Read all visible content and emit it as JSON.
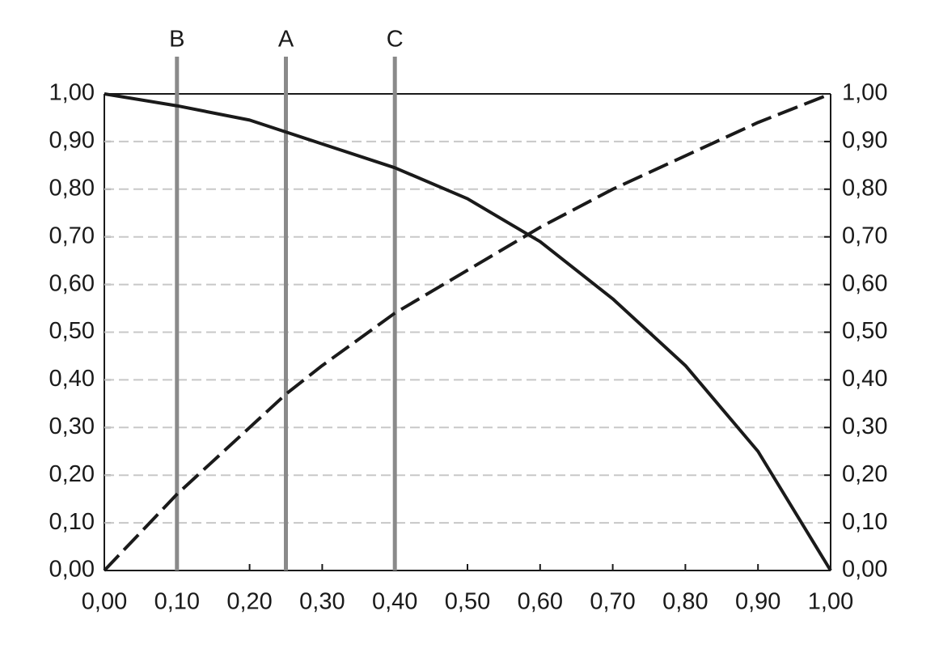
{
  "chart_data": {
    "type": "line",
    "x": [
      0,
      0.1,
      0.2,
      0.25,
      0.3,
      0.4,
      0.5,
      0.6,
      0.7,
      0.8,
      0.9,
      1.0
    ],
    "series": [
      {
        "color": "#1a1a1a",
        "dash": false,
        "values": [
          1.0,
          0.975,
          0.945,
          0.92,
          0.895,
          0.845,
          0.78,
          0.69,
          0.57,
          0.43,
          0.25,
          0.0
        ]
      },
      {
        "color": "#1a1a1a",
        "dash": true,
        "values": [
          0.0,
          0.16,
          0.3,
          0.37,
          0.43,
          0.54,
          0.63,
          0.72,
          0.8,
          0.87,
          0.94,
          1.0
        ]
      }
    ],
    "markers": [
      {
        "label": "B",
        "x": 0.1
      },
      {
        "label": "A",
        "x": 0.25
      },
      {
        "label": "C",
        "x": 0.4
      }
    ],
    "xlim": [
      0,
      1
    ],
    "ylim": [
      0,
      1
    ],
    "y2lim": [
      0,
      1
    ],
    "xticks": [
      {
        "value": 0,
        "label": "0,00"
      },
      {
        "value": 0.1,
        "label": "0,10"
      },
      {
        "value": 0.2,
        "label": "0,20"
      },
      {
        "value": 0.3,
        "label": "0,30"
      },
      {
        "value": 0.4,
        "label": "0,40"
      },
      {
        "value": 0.5,
        "label": "0,50"
      },
      {
        "value": 0.6,
        "label": "0,60"
      },
      {
        "value": 0.7,
        "label": "0,70"
      },
      {
        "value": 0.8,
        "label": "0,80"
      },
      {
        "value": 0.9,
        "label": "0,90"
      },
      {
        "value": 1,
        "label": "1,00"
      }
    ],
    "yticks": [
      {
        "value": 0,
        "label": "0,00"
      },
      {
        "value": 0.1,
        "label": "0,10"
      },
      {
        "value": 0.2,
        "label": "0,20"
      },
      {
        "value": 0.3,
        "label": "0,30"
      },
      {
        "value": 0.4,
        "label": "0,40"
      },
      {
        "value": 0.5,
        "label": "0,50"
      },
      {
        "value": 0.6,
        "label": "0,60"
      },
      {
        "value": 0.7,
        "label": "0,70"
      },
      {
        "value": 0.8,
        "label": "0,80"
      },
      {
        "value": 0.9,
        "label": "0,90"
      },
      {
        "value": 1,
        "label": "1,00"
      }
    ],
    "y2ticks": [
      {
        "value": 0,
        "label": "0,00"
      },
      {
        "value": 0.1,
        "label": "0,10"
      },
      {
        "value": 0.2,
        "label": "0,20"
      },
      {
        "value": 0.3,
        "label": "0,30"
      },
      {
        "value": 0.4,
        "label": "0,40"
      },
      {
        "value": 0.5,
        "label": "0,50"
      },
      {
        "value": 0.6,
        "label": "0,60"
      },
      {
        "value": 0.7,
        "label": "0,70"
      },
      {
        "value": 0.8,
        "label": "0,80"
      },
      {
        "value": 0.9,
        "label": "0,90"
      },
      {
        "value": 1,
        "label": "1,00"
      }
    ],
    "grid": true,
    "marker_color": "#8a8a8a"
  }
}
